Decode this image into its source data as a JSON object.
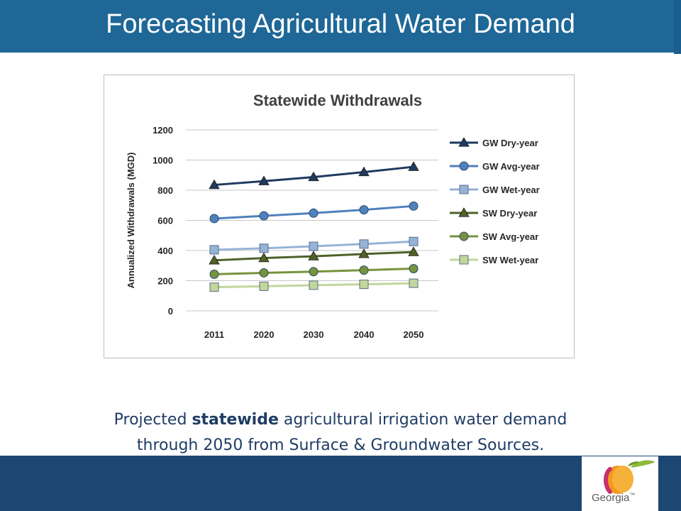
{
  "slide_title": "Forecasting Agricultural Water Demand",
  "caption": {
    "line1_pre": "Projected",
    "line1_bold": "statewide",
    "line1_post": "agricultural irrigation water demand",
    "line2": "through 2050 from Surface & Groundwater Sources."
  },
  "logo": {
    "text": "Georgia",
    "tm": "™",
    "icon": "peach-icon"
  },
  "colors": {
    "title_bar": "#1e6797",
    "footer": "#1e4672"
  },
  "chart_data": {
    "type": "line",
    "title": "Statewide Withdrawals",
    "ylabel": "Annualized Withdrawals (MGD)",
    "xlabel": "",
    "categories": [
      "2011",
      "2020",
      "2030",
      "2040",
      "2050"
    ],
    "ylim": [
      0,
      1200
    ],
    "yticks": [
      "0",
      "200",
      "400",
      "600",
      "800",
      "1000",
      "1200"
    ],
    "grid": true,
    "legend_position": "right",
    "series": [
      {
        "name": "GW Dry-year",
        "values": [
          835,
          860,
          887,
          920,
          955
        ],
        "color": "#1f3a5f",
        "marker": "triangle"
      },
      {
        "name": "GW Avg-year",
        "values": [
          612,
          630,
          648,
          670,
          695
        ],
        "color": "#4f81bd",
        "marker": "circle"
      },
      {
        "name": "GW Wet-year",
        "values": [
          405,
          415,
          428,
          443,
          460
        ],
        "color": "#95b3d7",
        "marker": "square"
      },
      {
        "name": "SW Dry-year",
        "values": [
          335,
          350,
          362,
          377,
          390
        ],
        "color": "#4f6228",
        "marker": "triangle"
      },
      {
        "name": "SW Avg-year",
        "values": [
          243,
          252,
          260,
          270,
          280
        ],
        "color": "#77933c",
        "marker": "circle"
      },
      {
        "name": "SW Wet-year",
        "values": [
          157,
          163,
          170,
          176,
          183
        ],
        "color": "#c3d69b",
        "marker": "square"
      }
    ]
  }
}
